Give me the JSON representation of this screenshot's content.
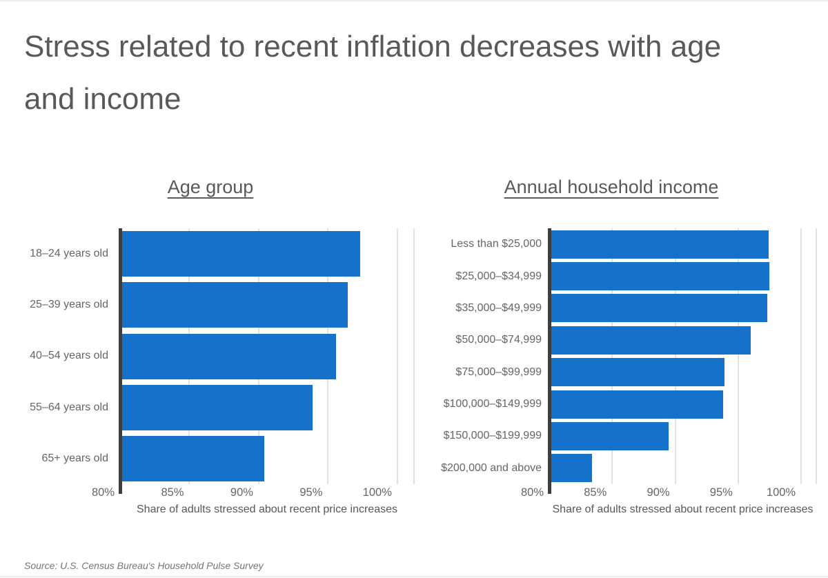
{
  "page": {
    "title_line1": "Stress related to recent inflation decreases with age",
    "title_line2": "and income",
    "source": "Source: U.S. Census Bureau's Household Pulse Survey"
  },
  "colors": {
    "bar": "#1571c9",
    "axis": "#3e3e3e",
    "gridline": "#e2e2e2",
    "text": "#636568",
    "title": "#58595b"
  },
  "chart_data": [
    {
      "type": "bar",
      "orientation": "horizontal",
      "title": "Age group",
      "xlabel": "Share of adults stressed about recent price increases",
      "xlim": [
        80,
        101.2
      ],
      "ticks": [
        80,
        85,
        90,
        95,
        100
      ],
      "tick_labels": [
        "80%",
        "85%",
        "90%",
        "95%",
        "100%"
      ],
      "grid": true,
      "legend": "none",
      "categories": [
        "18–24 years old",
        "25–39 years old",
        "40–54 years old",
        "55–64 years old",
        "65+ years old"
      ],
      "values": [
        97.3,
        96.4,
        95.6,
        93.9,
        90.4
      ],
      "value_unit": "%"
    },
    {
      "type": "bar",
      "orientation": "horizontal",
      "title": "Annual household income",
      "xlabel": "Share of adults stressed about recent price increases",
      "xlim": [
        80,
        101.2
      ],
      "ticks": [
        80,
        85,
        90,
        95,
        100
      ],
      "tick_labels": [
        "80%",
        "85%",
        "90%",
        "95%",
        "100%"
      ],
      "grid": true,
      "legend": "none",
      "categories": [
        "Less than $25,000",
        "$25,000–$34,999",
        "$35,000–$49,999",
        "$50,000–$74,999",
        "$75,000–$99,999",
        "$100,000–$149,999",
        "$150,000–$199,999",
        "$200,000 and above"
      ],
      "values": [
        97.4,
        97.5,
        97.3,
        96.0,
        93.9,
        93.8,
        89.5,
        83.4
      ],
      "value_unit": "%"
    }
  ]
}
